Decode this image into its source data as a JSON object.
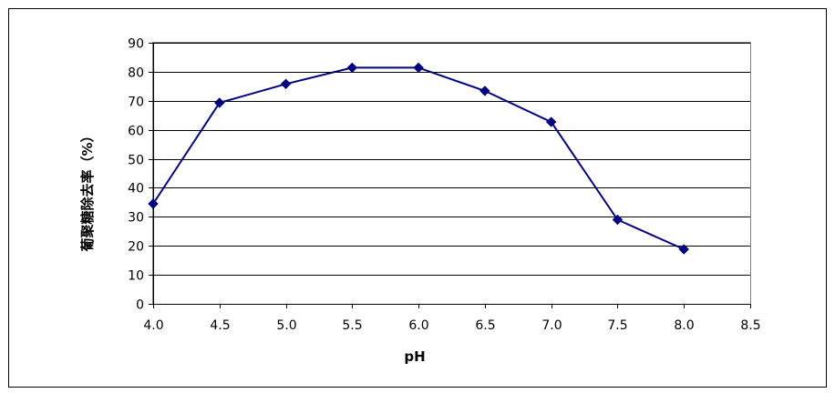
{
  "chart_data": {
    "type": "line",
    "xlabel": "pH",
    "ylabel": "葡聚糖除去率（%）",
    "xlim": [
      4.0,
      8.5
    ],
    "ylim": [
      0,
      90
    ],
    "x_ticks": [
      "4.0",
      "4.5",
      "5.0",
      "5.5",
      "6.0",
      "6.5",
      "7.0",
      "7.5",
      "8.0",
      "8.5"
    ],
    "y_ticks": [
      "0",
      "10",
      "20",
      "30",
      "40",
      "50",
      "60",
      "70",
      "80",
      "90"
    ],
    "grid": "horizontal",
    "legend": "none",
    "series": [
      {
        "color": "#000080",
        "marker": "diamond",
        "points": [
          {
            "x": 4.0,
            "y": 34.5
          },
          {
            "x": 4.5,
            "y": 69.3
          },
          {
            "x": 5.0,
            "y": 75.8
          },
          {
            "x": 5.5,
            "y": 81.4
          },
          {
            "x": 6.0,
            "y": 81.4
          },
          {
            "x": 6.5,
            "y": 73.4
          },
          {
            "x": 7.0,
            "y": 62.7
          },
          {
            "x": 7.5,
            "y": 29.0
          },
          {
            "x": 8.0,
            "y": 18.8
          }
        ]
      }
    ]
  }
}
